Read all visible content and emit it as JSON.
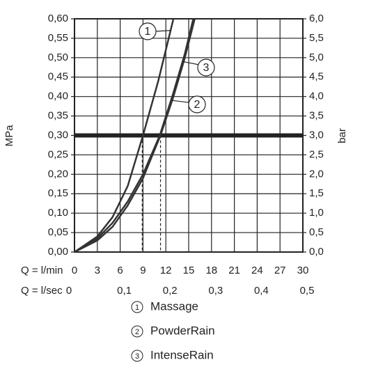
{
  "chart_data": {
    "type": "line",
    "y_label": "MPa",
    "y2_label": "bar",
    "x_label": "Q = l/min",
    "x2_label": "Q = l/sec",
    "xlim": [
      0,
      30
    ],
    "xticks": [
      0,
      3,
      6,
      9,
      12,
      15,
      18,
      21,
      24,
      27,
      30
    ],
    "x2lim": [
      0,
      0.5
    ],
    "x2ticks": [
      {
        "value": 0,
        "label": "0"
      },
      {
        "value": 0.1,
        "label": "0,1"
      },
      {
        "value": 0.2,
        "label": "0,2"
      },
      {
        "value": 0.3,
        "label": "0,3"
      },
      {
        "value": 0.4,
        "label": "0,4"
      },
      {
        "value": 0.5,
        "label": "0,5"
      }
    ],
    "ylim": [
      0,
      0.6
    ],
    "yticks": [
      {
        "value": 0,
        "label": "0,00"
      },
      {
        "value": 0.05,
        "label": "0,05"
      },
      {
        "value": 0.1,
        "label": "0,10"
      },
      {
        "value": 0.15,
        "label": "0,15"
      },
      {
        "value": 0.2,
        "label": "0,20"
      },
      {
        "value": 0.25,
        "label": "0,25"
      },
      {
        "value": 0.3,
        "label": "0,30"
      },
      {
        "value": 0.35,
        "label": "0,35"
      },
      {
        "value": 0.4,
        "label": "0,40"
      },
      {
        "value": 0.45,
        "label": "0,45"
      },
      {
        "value": 0.5,
        "label": "0,50"
      },
      {
        "value": 0.55,
        "label": "0,55"
      },
      {
        "value": 0.6,
        "label": "0,60"
      }
    ],
    "y2lim": [
      0,
      6
    ],
    "y2ticks": [
      {
        "value": 0,
        "label": "0,0"
      },
      {
        "value": 0.5,
        "label": "0,5"
      },
      {
        "value": 1,
        "label": "1,0"
      },
      {
        "value": 1.5,
        "label": "1,5"
      },
      {
        "value": 2,
        "label": "2,0"
      },
      {
        "value": 2.5,
        "label": "2,5"
      },
      {
        "value": 3,
        "label": "3,0"
      },
      {
        "value": 3.5,
        "label": "3,5"
      },
      {
        "value": 4,
        "label": "4,0"
      },
      {
        "value": 4.5,
        "label": "4,5"
      },
      {
        "value": 5,
        "label": "5,0"
      },
      {
        "value": 5.5,
        "label": "5,5"
      },
      {
        "value": 6,
        "label": "6,0"
      }
    ],
    "grid": true,
    "reference_y": 0.3,
    "reference_x": [
      8.9,
      11.3
    ],
    "series": [
      {
        "name": "Massage",
        "label": "1",
        "color": "#333333",
        "x": [
          0,
          3,
          5,
          7,
          9,
          11,
          12,
          13
        ],
        "values": [
          0,
          0.04,
          0.09,
          0.17,
          0.3,
          0.44,
          0.52,
          0.6
        ]
      },
      {
        "name": "PowderRain",
        "label": "2",
        "color": "#333333",
        "x": [
          0,
          3,
          5,
          7,
          9,
          11.3,
          13,
          14.5,
          15.8
        ],
        "values": [
          0,
          0.03,
          0.065,
          0.12,
          0.19,
          0.3,
          0.4,
          0.5,
          0.6
        ]
      },
      {
        "name": "IntenseRain",
        "label": "3",
        "color": "#333333",
        "x": [
          0,
          3,
          5,
          7,
          9,
          11.2,
          13,
          14.5,
          15.6
        ],
        "values": [
          0,
          0.035,
          0.075,
          0.13,
          0.2,
          0.3,
          0.41,
          0.51,
          0.6
        ]
      }
    ]
  }
}
